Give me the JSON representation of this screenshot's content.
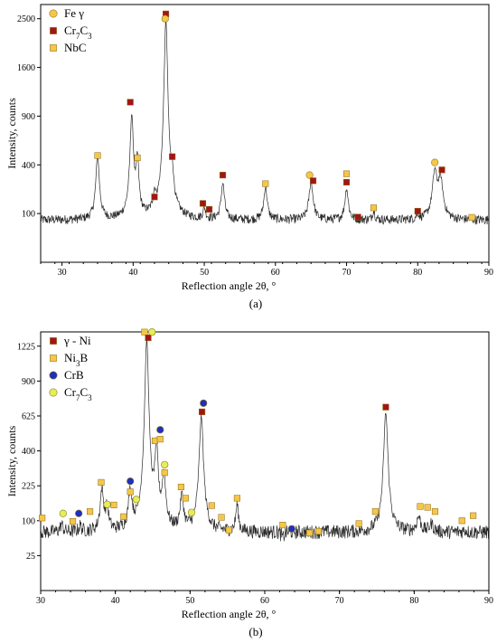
{
  "chart_data": [
    {
      "type": "line",
      "panel_label": "(a)",
      "xlabel": "Reflection angle 2θ, °",
      "ylabel": "Intensity, counts",
      "xlim": [
        27,
        90
      ],
      "x_ticks": [
        30,
        40,
        50,
        60,
        70,
        80,
        90
      ],
      "y_scale": "sqrt",
      "y_ticks": [
        100,
        400,
        900,
        1600,
        2500
      ],
      "grid": false,
      "legend_position": "top-left",
      "legend": [
        {
          "marker": "circle",
          "color": "#f6c64a",
          "label": "Fe γ"
        },
        {
          "marker": "square",
          "color": "#a31515",
          "label": "Cr7C3"
        },
        {
          "marker": "square",
          "color": "#f6c64a",
          "label": "NbC"
        }
      ],
      "baseline": 75,
      "peaks": [
        {
          "x": 35.0,
          "y": 480,
          "w": 0.25
        },
        {
          "x": 39.8,
          "y": 900,
          "w": 0.25
        },
        {
          "x": 40.6,
          "y": 430,
          "w": 0.2
        },
        {
          "x": 43.0,
          "y": 160,
          "w": 0.2
        },
        {
          "x": 44.6,
          "y": 2450,
          "w": 0.28
        },
        {
          "x": 45.5,
          "y": 250,
          "w": 0.2
        },
        {
          "x": 50.0,
          "y": 120,
          "w": 0.2
        },
        {
          "x": 52.6,
          "y": 260,
          "w": 0.25
        },
        {
          "x": 58.6,
          "y": 240,
          "w": 0.25
        },
        {
          "x": 65.0,
          "y": 270,
          "w": 0.3
        },
        {
          "x": 70.0,
          "y": 230,
          "w": 0.25
        },
        {
          "x": 73.8,
          "y": 110,
          "w": 0.2
        },
        {
          "x": 80.0,
          "y": 95,
          "w": 0.2
        },
        {
          "x": 82.4,
          "y": 340,
          "w": 0.35
        },
        {
          "x": 83.2,
          "y": 290,
          "w": 0.35
        }
      ],
      "markers": [
        {
          "phase": "NbC",
          "x": 35.0,
          "y": 480
        },
        {
          "phase": "Cr7C3",
          "x": 39.6,
          "y": 1080
        },
        {
          "phase": "NbC",
          "x": 40.6,
          "y": 460
        },
        {
          "phase": "Cr7C3",
          "x": 43.0,
          "y": 180
        },
        {
          "phase": "Cr7C3",
          "x": 44.6,
          "y": 2600
        },
        {
          "phase": "Fe γ",
          "x": 44.5,
          "y": 2500
        },
        {
          "phase": "Cr7C3",
          "x": 45.5,
          "y": 470
        },
        {
          "phase": "Cr7C3",
          "x": 49.8,
          "y": 146
        },
        {
          "phase": "Cr7C3",
          "x": 50.7,
          "y": 118
        },
        {
          "phase": "Cr7C3",
          "x": 52.6,
          "y": 320
        },
        {
          "phase": "NbC",
          "x": 58.6,
          "y": 260
        },
        {
          "phase": "Fe γ",
          "x": 64.8,
          "y": 320
        },
        {
          "phase": "Cr7C3",
          "x": 65.3,
          "y": 280
        },
        {
          "phase": "NbC",
          "x": 70.0,
          "y": 330
        },
        {
          "phase": "Cr7C3",
          "x": 70.0,
          "y": 270
        },
        {
          "phase": "Cr7C3",
          "x": 71.6,
          "y": 86
        },
        {
          "phase": "NbC",
          "x": 73.8,
          "y": 125
        },
        {
          "phase": "Cr7C3",
          "x": 80.0,
          "y": 110
        },
        {
          "phase": "Fe γ",
          "x": 82.4,
          "y": 420
        },
        {
          "phase": "Cr7C3",
          "x": 83.4,
          "y": 360
        },
        {
          "phase": "NbC",
          "x": 87.6,
          "y": 85
        }
      ]
    },
    {
      "type": "line",
      "panel_label": "(b)",
      "xlabel": "Reflection angle 2θ, °",
      "ylabel": "Intensity, counts",
      "xlim": [
        30,
        90
      ],
      "x_ticks": [
        30,
        40,
        50,
        60,
        70,
        80,
        90
      ],
      "y_scale": "sqrt",
      "y_ticks": [
        25,
        100,
        225,
        400,
        625,
        900,
        1225
      ],
      "grid": false,
      "legend_position": "top-left",
      "legend": [
        {
          "marker": "square",
          "color": "#a31515",
          "label": "γ - Ni"
        },
        {
          "marker": "square",
          "color": "#f6c64a",
          "label": "Ni3B"
        },
        {
          "marker": "circle",
          "color": "#1f2fbf",
          "label": "CrB"
        },
        {
          "marker": "circle",
          "color": "#e6ee55",
          "label": "Cr7C3"
        }
      ],
      "baseline": 70,
      "peaks": [
        {
          "x": 32.8,
          "y": 90,
          "w": 0.2
        },
        {
          "x": 35.3,
          "y": 85,
          "w": 0.2
        },
        {
          "x": 38.2,
          "y": 210,
          "w": 0.25
        },
        {
          "x": 38.9,
          "y": 140,
          "w": 0.2
        },
        {
          "x": 42.0,
          "y": 200,
          "w": 0.25
        },
        {
          "x": 44.2,
          "y": 1280,
          "w": 0.3
        },
        {
          "x": 45.5,
          "y": 390,
          "w": 0.25
        },
        {
          "x": 46.5,
          "y": 260,
          "w": 0.25
        },
        {
          "x": 48.9,
          "y": 180,
          "w": 0.25
        },
        {
          "x": 51.5,
          "y": 620,
          "w": 0.3
        },
        {
          "x": 53.8,
          "y": 70,
          "w": 0.2
        },
        {
          "x": 56.3,
          "y": 150,
          "w": 0.2
        },
        {
          "x": 62.4,
          "y": 55,
          "w": 0.2
        },
        {
          "x": 72.8,
          "y": 70,
          "w": 0.25
        },
        {
          "x": 76.2,
          "y": 650,
          "w": 0.3
        },
        {
          "x": 80.6,
          "y": 110,
          "w": 0.3
        },
        {
          "x": 82.3,
          "y": 90,
          "w": 0.3
        },
        {
          "x": 86.8,
          "y": 75,
          "w": 0.25
        }
      ],
      "markers": [
        {
          "phase": "Ni3B",
          "x": 30.2,
          "y": 108
        },
        {
          "phase": "Cr7C3",
          "x": 33.0,
          "y": 122
        },
        {
          "phase": "Ni3B",
          "x": 34.3,
          "y": 98
        },
        {
          "phase": "CrB",
          "x": 35.1,
          "y": 122
        },
        {
          "phase": "Ni3B",
          "x": 36.6,
          "y": 128
        },
        {
          "phase": "Ni3B",
          "x": 38.1,
          "y": 240
        },
        {
          "phase": "Cr7C3",
          "x": 38.9,
          "y": 152
        },
        {
          "phase": "Ni3B",
          "x": 39.8,
          "y": 150
        },
        {
          "phase": "Ni3B",
          "x": 41.1,
          "y": 112
        },
        {
          "phase": "CrB",
          "x": 42.0,
          "y": 245
        },
        {
          "phase": "Ni3B",
          "x": 42.0,
          "y": 200
        },
        {
          "phase": "Cr7C3",
          "x": 42.8,
          "y": 170
        },
        {
          "phase": "Ni3B",
          "x": 43.9,
          "y": 1370
        },
        {
          "phase": "γ - Ni",
          "x": 44.4,
          "y": 1310
        },
        {
          "phase": "Cr7C3",
          "x": 44.9,
          "y": 1370
        },
        {
          "phase": "Ni3B",
          "x": 45.3,
          "y": 460
        },
        {
          "phase": "CrB",
          "x": 46.0,
          "y": 530
        },
        {
          "phase": "Ni3B",
          "x": 46.0,
          "y": 470
        },
        {
          "phase": "Cr7C3",
          "x": 46.6,
          "y": 325
        },
        {
          "phase": "Ni3B",
          "x": 46.6,
          "y": 285
        },
        {
          "phase": "Ni3B",
          "x": 48.8,
          "y": 220
        },
        {
          "phase": "Ni3B",
          "x": 49.4,
          "y": 175
        },
        {
          "phase": "Cr7C3",
          "x": 50.2,
          "y": 125
        },
        {
          "phase": "CrB",
          "x": 51.8,
          "y": 720
        },
        {
          "phase": "γ - Ni",
          "x": 51.6,
          "y": 655
        },
        {
          "phase": "Ni3B",
          "x": 52.9,
          "y": 148
        },
        {
          "phase": "Ni3B",
          "x": 54.2,
          "y": 110
        },
        {
          "phase": "Ni3B",
          "x": 55.2,
          "y": 75
        },
        {
          "phase": "Ni3B",
          "x": 56.3,
          "y": 175
        },
        {
          "phase": "Ni3B",
          "x": 62.4,
          "y": 88
        },
        {
          "phase": "CrB",
          "x": 63.6,
          "y": 78
        },
        {
          "phase": "Ni3B",
          "x": 66.0,
          "y": 68
        },
        {
          "phase": "Ni3B",
          "x": 67.2,
          "y": 72
        },
        {
          "phase": "Ni3B",
          "x": 72.6,
          "y": 92
        },
        {
          "phase": "Ni3B",
          "x": 74.8,
          "y": 128
        },
        {
          "phase": "γ - Ni",
          "x": 76.2,
          "y": 690
        },
        {
          "phase": "Ni3B",
          "x": 80.8,
          "y": 145
        },
        {
          "phase": "Ni3B",
          "x": 81.8,
          "y": 142
        },
        {
          "phase": "Ni3B",
          "x": 82.8,
          "y": 128
        },
        {
          "phase": "Ni3B",
          "x": 86.4,
          "y": 100
        },
        {
          "phase": "Ni3B",
          "x": 87.9,
          "y": 115
        }
      ]
    }
  ]
}
